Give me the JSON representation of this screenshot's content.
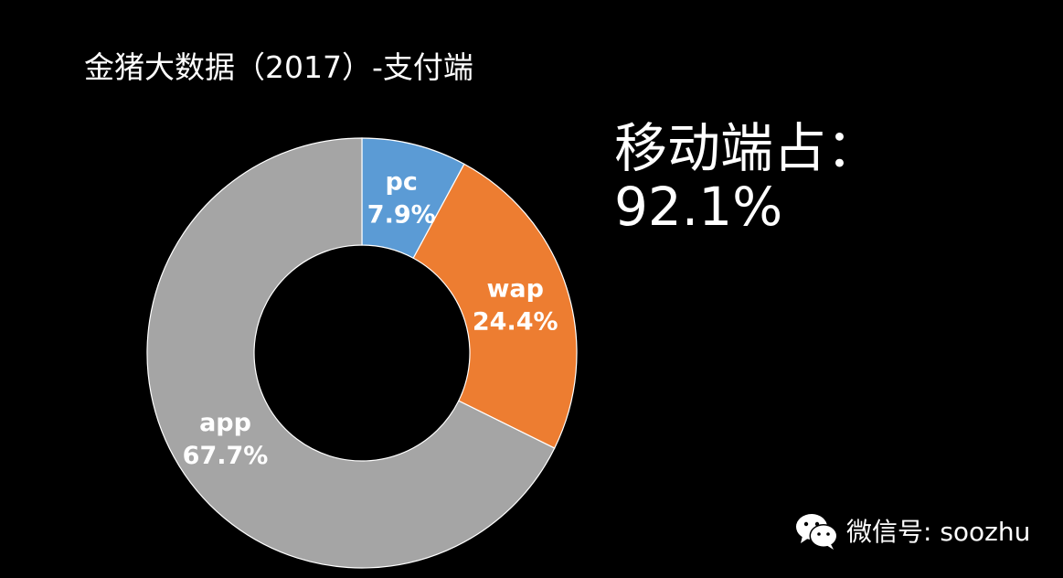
{
  "title": "金猪大数据（2017）-支付端",
  "callout": {
    "line1": "移动端占：",
    "line2": "92.1%"
  },
  "watermark": {
    "icon": "wechat-icon",
    "text": "微信号: soozhu"
  },
  "chart_data": {
    "type": "pie",
    "variant": "donut",
    "start": "top",
    "direction": "clockwise",
    "title": "金猪大数据（2017）-支付端",
    "categories": [
      "pc",
      "wap",
      "app"
    ],
    "values": [
      7.9,
      24.4,
      67.7
    ],
    "value_labels": [
      "7.9%",
      "24.4%",
      "67.7%"
    ],
    "unit": "%",
    "colors": [
      "#5B9BD5",
      "#ED7D31",
      "#A5A5A5"
    ],
    "legend": "none"
  }
}
